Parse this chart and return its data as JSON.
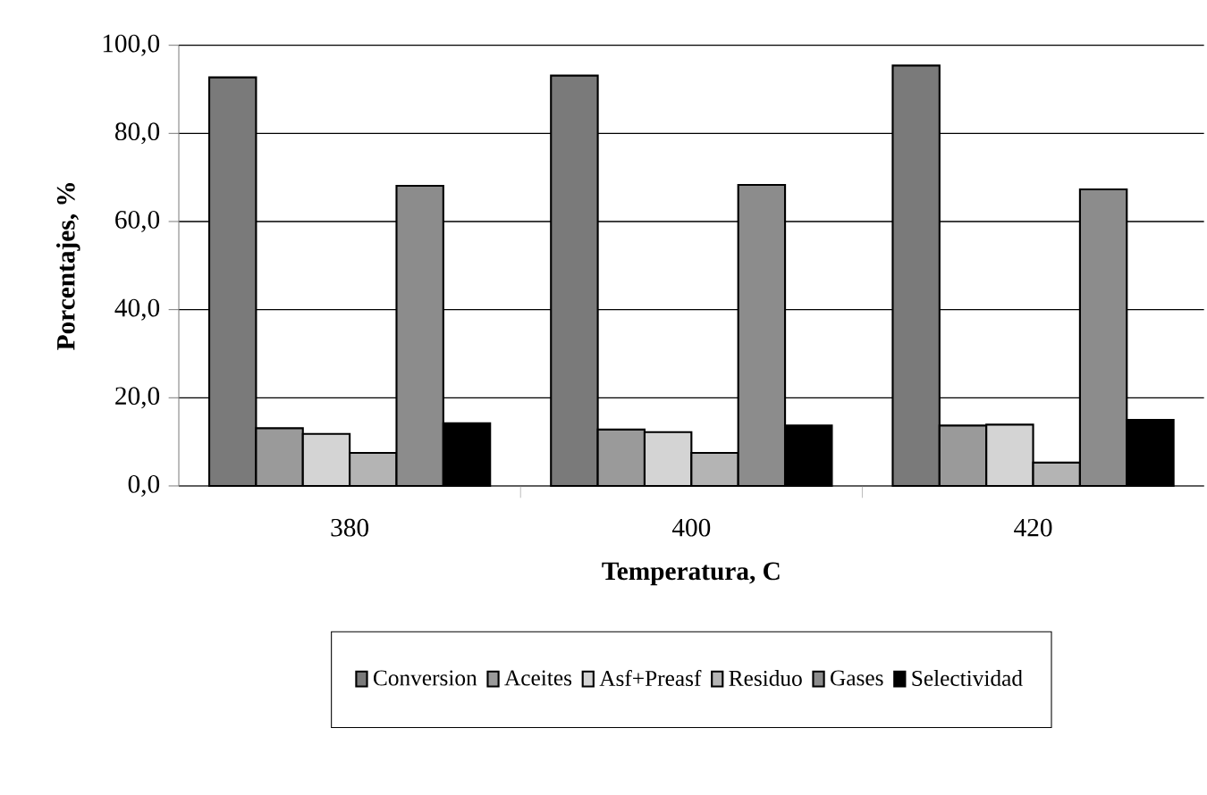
{
  "chart_data": {
    "type": "bar",
    "xlabel": "Temperatura, C",
    "ylabel": "Porcentajes, %",
    "categories": [
      "380",
      "400",
      "420"
    ],
    "series": [
      {
        "name": "Conversion",
        "color": "#7a7a7a",
        "values": [
          92.7,
          93.1,
          95.4
        ]
      },
      {
        "name": "Aceites",
        "color": "#9a9a9a",
        "values": [
          13.1,
          12.8,
          13.7
        ]
      },
      {
        "name": "Asf+Preasf",
        "color": "#d4d4d4",
        "values": [
          11.8,
          12.2,
          13.9
        ]
      },
      {
        "name": "Residuo",
        "color": "#b4b4b4",
        "values": [
          7.5,
          7.5,
          5.3
        ]
      },
      {
        "name": "Gases",
        "color": "#8c8c8c",
        "values": [
          68.1,
          68.3,
          67.3
        ]
      },
      {
        "name": "Selectividad",
        "color": "#000000",
        "values": [
          14.2,
          13.7,
          15.0
        ]
      }
    ],
    "ylim": [
      0,
      100
    ],
    "yticks": [
      {
        "value": 0,
        "label": "0,0"
      },
      {
        "value": 20,
        "label": "20,0"
      },
      {
        "value": 40,
        "label": "40,0"
      },
      {
        "value": 60,
        "label": "60,0"
      },
      {
        "value": 80,
        "label": "80,0"
      },
      {
        "value": 100,
        "label": "100,0"
      }
    ],
    "grid": "y",
    "legend": "bottom"
  }
}
